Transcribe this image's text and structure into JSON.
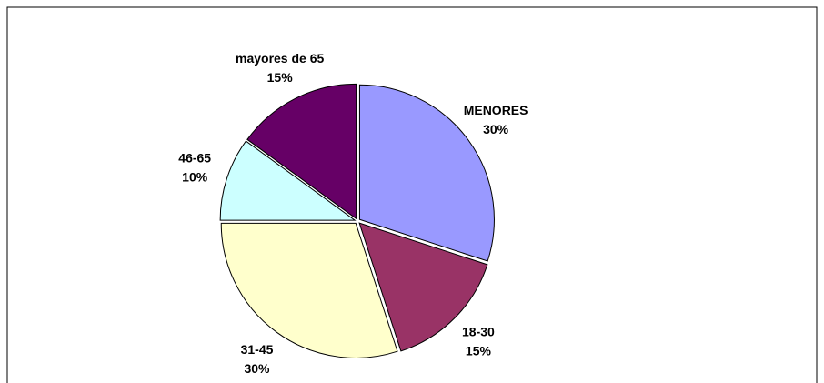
{
  "chart_data": {
    "type": "pie",
    "categories": [
      "MENORES",
      "18-30",
      "31-45",
      "46-65",
      "mayores de 65"
    ],
    "values": [
      30,
      15,
      30,
      10,
      15
    ],
    "value_labels": [
      "30%",
      "15%",
      "30%",
      "10%",
      "15%"
    ],
    "colors": [
      "#9999ff",
      "#993366",
      "#ffffcc",
      "#ccffff",
      "#660066"
    ]
  }
}
